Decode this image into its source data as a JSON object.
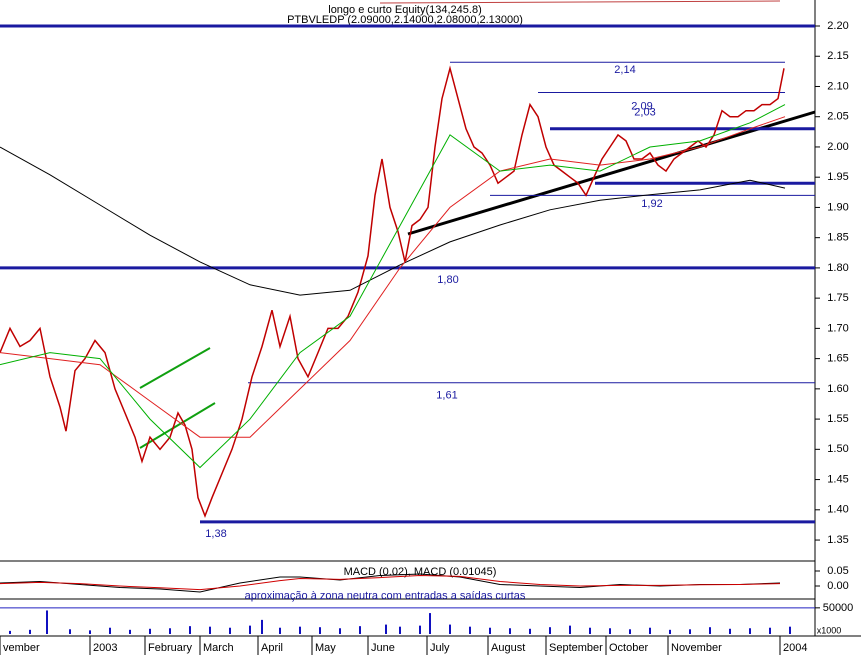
{
  "chart_data": [
    {
      "type": "line",
      "title": "longo e curto Equity(134,245.8)",
      "subtitle": "PTBVLEDP (2.09000,2.14000,2.08000,2.13000)",
      "xlim": [
        0,
        815
      ],
      "ylim": [
        1.317,
        2.243
      ],
      "yticks": [
        1.35,
        {
          "value": 1.4,
          "label": "1.40"
        },
        1.45,
        {
          "value": 1.5,
          "label": "1.50"
        },
        1.55,
        {
          "value": 1.6,
          "label": "1.60"
        },
        1.65,
        {
          "value": 1.7,
          "label": "1.70"
        },
        1.75,
        {
          "value": 1.8,
          "label": "1.80"
        },
        1.85,
        {
          "value": 1.9,
          "label": "1.90"
        },
        1.95,
        {
          "value": 2.0,
          "label": "2.00"
        },
        2.05,
        {
          "value": 2.1,
          "label": "2.10"
        },
        2.15,
        {
          "value": 2.2,
          "label": "2.20"
        }
      ],
      "xticks": [
        {
          "value": 0,
          "label": "vember"
        },
        {
          "value": 90,
          "label": "2003"
        },
        {
          "value": 145,
          "label": "February"
        },
        {
          "value": 200,
          "label": "March"
        },
        {
          "value": 258,
          "label": "April"
        },
        {
          "value": 312,
          "label": "May"
        },
        {
          "value": 368,
          "label": "June"
        },
        {
          "value": 427,
          "label": "July"
        },
        {
          "value": 488,
          "label": "August"
        },
        {
          "value": 546,
          "label": "September"
        },
        {
          "value": 606,
          "label": "October"
        },
        {
          "value": 668,
          "label": "November"
        },
        {
          "value": 780,
          "label": "2004"
        }
      ],
      "series": [
        {
          "color": "#c00000",
          "x": [
            0,
            10,
            20,
            30,
            40,
            50,
            60,
            66,
            75,
            85,
            95,
            105,
            115,
            125,
            135,
            142,
            150,
            160,
            170,
            178,
            185,
            192,
            198,
            205,
            212,
            222,
            232,
            242,
            252,
            262,
            272,
            280,
            290,
            298,
            308,
            318,
            328,
            338,
            348,
            358,
            368,
            375,
            382,
            390,
            398,
            405,
            412,
            420,
            428,
            435,
            442,
            450,
            458,
            466,
            474,
            482,
            490,
            498,
            506,
            514,
            522,
            530,
            538,
            546,
            554,
            562,
            570,
            578,
            586,
            594,
            602,
            610,
            618,
            626,
            634,
            642,
            650,
            658,
            666,
            674,
            682,
            690,
            698,
            706,
            714,
            722,
            730,
            738,
            746,
            754,
            762,
            770,
            778,
            784
          ],
          "values": [
            1.66,
            1.7,
            1.67,
            1.68,
            1.7,
            1.62,
            1.57,
            1.53,
            1.63,
            1.65,
            1.68,
            1.66,
            1.6,
            1.56,
            1.52,
            1.48,
            1.52,
            1.5,
            1.52,
            1.56,
            1.54,
            1.5,
            1.42,
            1.39,
            1.42,
            1.46,
            1.5,
            1.55,
            1.62,
            1.67,
            1.73,
            1.67,
            1.72,
            1.65,
            1.62,
            1.66,
            1.7,
            1.7,
            1.72,
            1.76,
            1.82,
            1.92,
            1.98,
            1.9,
            1.86,
            1.81,
            1.87,
            1.88,
            1.9,
            2.0,
            2.08,
            2.13,
            2.08,
            2.03,
            2.0,
            1.99,
            1.97,
            1.94,
            1.95,
            1.96,
            2.02,
            2.07,
            2.05,
            2.0,
            1.97,
            1.96,
            1.95,
            1.94,
            1.92,
            1.95,
            1.98,
            2.0,
            2.02,
            2.01,
            1.98,
            1.98,
            1.99,
            1.97,
            1.96,
            1.98,
            1.99,
            2.0,
            2.01,
            2.0,
            2.02,
            2.06,
            2.05,
            2.05,
            2.06,
            2.06,
            2.07,
            2.07,
            2.08,
            2.13
          ]
        },
        {
          "color": "#000000",
          "x": [
            0,
            50,
            100,
            150,
            200,
            250,
            300,
            350,
            400,
            450,
            500,
            550,
            600,
            650,
            700,
            750,
            785
          ],
          "values": [
            2.0,
            1.954,
            1.904,
            1.854,
            1.81,
            1.772,
            1.755,
            1.763,
            1.805,
            1.843,
            1.871,
            1.896,
            1.912,
            1.921,
            1.929,
            1.945,
            1.932
          ]
        },
        {
          "color": "#e02020",
          "x": [
            0,
            50,
            100,
            150,
            200,
            250,
            300,
            350,
            400,
            450,
            500,
            550,
            600,
            650,
            700,
            750,
            785
          ],
          "values": [
            1.66,
            1.65,
            1.64,
            1.58,
            1.52,
            1.52,
            1.6,
            1.68,
            1.8,
            1.9,
            1.96,
            1.98,
            1.97,
            1.98,
            2.0,
            2.03,
            2.05
          ]
        },
        {
          "color": "#00b000",
          "x": [
            0,
            50,
            100,
            150,
            200,
            250,
            300,
            350,
            400,
            450,
            500,
            550,
            600,
            650,
            700,
            750,
            785
          ],
          "values": [
            1.64,
            1.66,
            1.65,
            1.55,
            1.47,
            1.55,
            1.66,
            1.72,
            1.87,
            2.02,
            1.96,
            1.97,
            1.96,
            2.0,
            2.01,
            2.04,
            2.07
          ]
        }
      ],
      "levels": [
        {
          "value": 2.2
        },
        {
          "value": 2.14,
          "label": "2,14"
        },
        {
          "value": 2.09,
          "label": "2,09"
        },
        {
          "value": 2.03,
          "label": "2,03"
        },
        {
          "value": 1.94
        },
        {
          "value": 1.92,
          "label": "1,92"
        },
        {
          "value": 1.8,
          "label": "1,80"
        },
        {
          "value": 1.61,
          "label": "1,61"
        },
        {
          "value": 1.38,
          "label": "1,38"
        }
      ],
      "color": "#1a1aa0"
    },
    {
      "type": "line",
      "title": "MACD (0.02), MACD (0.01045)",
      "annotation": "aproximação à zona neutra com entradas a saídas curtas",
      "xlim": [
        0,
        815
      ],
      "ylim": [
        -0.04,
        0.08
      ],
      "yticks": [
        {
          "value": 0.05,
          "label": "0.05"
        },
        {
          "value": 0,
          "label": "0.00"
        }
      ],
      "series": [
        {
          "color": "#000000",
          "x": [
            0,
            40,
            80,
            120,
            160,
            200,
            240,
            280,
            300,
            340,
            380,
            420,
            460,
            500,
            540,
            580,
            620,
            660,
            700,
            740,
            780
          ],
          "values": [
            0.01,
            0.015,
            0.005,
            -0.005,
            -0.01,
            -0.02,
            0.01,
            0.03,
            0.03,
            0.02,
            0.035,
            0.04,
            0.03,
            0.005,
            0.0,
            -0.005,
            0.005,
            0.0,
            0.005,
            0.005,
            0.01
          ]
        },
        {
          "color": "#d00000",
          "x": [
            0,
            40,
            80,
            120,
            160,
            200,
            240,
            280,
            300,
            340,
            380,
            420,
            460,
            500,
            540,
            580,
            620,
            660,
            700,
            740,
            780
          ],
          "values": [
            0.008,
            0.012,
            0.008,
            0.0,
            -0.006,
            -0.012,
            0.0,
            0.018,
            0.025,
            0.022,
            0.028,
            0.035,
            0.032,
            0.015,
            0.005,
            0.0,
            0.002,
            0.002,
            0.004,
            0.005,
            0.008
          ]
        }
      ]
    },
    {
      "type": "bar",
      "unit_label": "x1000",
      "xlim": [
        0,
        815
      ],
      "ylim": [
        0,
        65000
      ],
      "yticks": [
        50000
      ],
      "color": "#1010c0",
      "x": [
        10,
        30,
        47,
        70,
        90,
        110,
        130,
        150,
        170,
        190,
        210,
        230,
        250,
        262,
        280,
        300,
        320,
        340,
        360,
        386,
        400,
        420,
        430,
        450,
        470,
        490,
        510,
        530,
        550,
        570,
        590,
        610,
        630,
        650,
        670,
        690,
        710,
        730,
        750,
        770,
        790
      ],
      "values": [
        6000,
        8000,
        45000,
        9000,
        7000,
        12000,
        8000,
        10000,
        11000,
        15000,
        14000,
        12000,
        16000,
        27000,
        12000,
        14000,
        13000,
        11000,
        15000,
        18000,
        14000,
        16000,
        40000,
        18000,
        14000,
        12000,
        11000,
        10000,
        13000,
        16000,
        12000,
        11000,
        9000,
        12000,
        8000,
        9000,
        13000,
        10000,
        11000,
        12000,
        14000
      ]
    }
  ]
}
